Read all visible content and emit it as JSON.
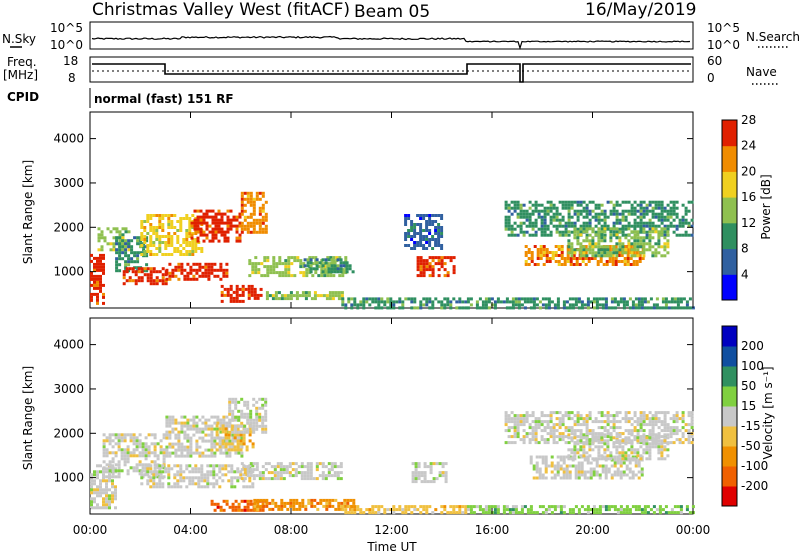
{
  "header": {
    "station": "Christmas Valley West (fitACF)",
    "beam": "Beam 05",
    "date": "16/May/2019"
  },
  "top_panels": {
    "nsky_label": "N.Sky",
    "nsky_tick_top": "10^5",
    "nsky_tick_bottom": "10^0",
    "nsearch_label": "N.Search",
    "nsearch_tick_top": "10^5",
    "nsearch_tick_bottom": "10^0",
    "freq_label": "Freq.",
    "freq_unit": "[MHz]",
    "freq_tick_top": "18",
    "freq_tick_bottom": "8",
    "nave_label": "Nave",
    "nave_tick_top": "60",
    "nave_tick_bottom": "0",
    "cpid_label": "CPID",
    "cpid_value": "normal (fast) 151 RF"
  },
  "chart_data": [
    {
      "type": "heatmap",
      "name": "power",
      "ylabel": "Slant Range [km]",
      "yticks": [
        "1000",
        "2000",
        "3000",
        "4000"
      ],
      "ylim": [
        180,
        4600
      ],
      "xlim": [
        0,
        24
      ],
      "colorbar_label": "Power [dB]",
      "colorbar_ticks": [
        "4",
        "8",
        "12",
        "16",
        "20",
        "24",
        "28"
      ],
      "colors": [
        "#0000ff",
        "#3060a0",
        "#2f8f60",
        "#8fc050",
        "#f0d020",
        "#f08c00",
        "#e02000"
      ],
      "regions": [
        {
          "t0": 0.0,
          "t1": 0.5,
          "r0": 300,
          "r1": 1400,
          "level": 6
        },
        {
          "t0": 0.3,
          "t1": 1.5,
          "r0": 1500,
          "r1": 2000,
          "level": 3
        },
        {
          "t0": 1.0,
          "t1": 2.2,
          "r0": 1000,
          "r1": 1800,
          "level": 2
        },
        {
          "t0": 1.3,
          "t1": 3.0,
          "r0": 700,
          "r1": 1100,
          "level": 6
        },
        {
          "t0": 2.0,
          "t1": 4.5,
          "r0": 1400,
          "r1": 2300,
          "level": 4
        },
        {
          "t0": 3.0,
          "t1": 5.5,
          "r0": 800,
          "r1": 1200,
          "level": 6
        },
        {
          "t0": 4.0,
          "t1": 6.0,
          "r0": 1700,
          "r1": 2400,
          "level": 6
        },
        {
          "t0": 5.2,
          "t1": 6.8,
          "r0": 350,
          "r1": 700,
          "level": 6
        },
        {
          "t0": 6.0,
          "t1": 7.0,
          "r0": 1900,
          "r1": 2800,
          "level": 5
        },
        {
          "t0": 6.3,
          "t1": 10.2,
          "r0": 900,
          "r1": 1350,
          "level": 3
        },
        {
          "t0": 7.0,
          "t1": 10.0,
          "r0": 380,
          "r1": 560,
          "level": 3
        },
        {
          "t0": 8.5,
          "t1": 10.5,
          "r0": 1000,
          "r1": 1300,
          "level": 2
        },
        {
          "t0": 10.0,
          "t1": 15.0,
          "r0": 200,
          "r1": 420,
          "level": 2
        },
        {
          "t0": 12.5,
          "t1": 14.0,
          "r0": 1550,
          "r1": 2300,
          "level": 1
        },
        {
          "t0": 13.0,
          "t1": 14.5,
          "r0": 900,
          "r1": 1350,
          "level": 6
        },
        {
          "t0": 15.0,
          "t1": 24.0,
          "r0": 200,
          "r1": 420,
          "level": 2
        },
        {
          "t0": 16.5,
          "t1": 24.0,
          "r0": 1800,
          "r1": 2600,
          "level": 2
        },
        {
          "t0": 17.3,
          "t1": 22.0,
          "r0": 1150,
          "r1": 1600,
          "level": 5
        },
        {
          "t0": 19.0,
          "t1": 23.0,
          "r0": 1350,
          "r1": 2000,
          "level": 3
        }
      ]
    },
    {
      "type": "heatmap",
      "name": "velocity",
      "ylabel": "Slant Range [km]",
      "yticks": [
        "1000",
        "2000",
        "3000",
        "4000"
      ],
      "ylim": [
        180,
        4600
      ],
      "xlim": [
        0,
        24
      ],
      "xlabel": "Time UT",
      "xticks": [
        "00:00",
        "04:00",
        "08:00",
        "12:00",
        "16:00",
        "20:00",
        "00:00"
      ],
      "colorbar_label": "Velocity [m s⁻¹]",
      "colorbar_ticks": [
        "-200",
        "-100",
        "-50",
        "-15",
        "15",
        "50",
        "100",
        "200"
      ],
      "colors": [
        "#e00000",
        "#f06000",
        "#f09000",
        "#f0c040",
        "#c8c8c8",
        "#80d040",
        "#309060",
        "#104fa0",
        "#0000c0"
      ],
      "regions": [
        {
          "t0": 0.0,
          "t1": 1.0,
          "r0": 300,
          "r1": 1300,
          "level": 4
        },
        {
          "t0": 0.5,
          "t1": 3.0,
          "r0": 1000,
          "r1": 2000,
          "level": 4
        },
        {
          "t0": 2.0,
          "t1": 6.5,
          "r0": 800,
          "r1": 1300,
          "level": 4
        },
        {
          "t0": 3.0,
          "t1": 6.0,
          "r0": 1500,
          "r1": 2400,
          "level": 4
        },
        {
          "t0": 5.0,
          "t1": 6.5,
          "r0": 1600,
          "r1": 2200,
          "level": 3
        },
        {
          "t0": 5.5,
          "t1": 7.0,
          "r0": 2000,
          "r1": 2800,
          "level": 4
        },
        {
          "t0": 6.0,
          "t1": 10.0,
          "r0": 950,
          "r1": 1350,
          "level": 4
        },
        {
          "t0": 4.8,
          "t1": 7.0,
          "r0": 280,
          "r1": 500,
          "level": 1
        },
        {
          "t0": 6.5,
          "t1": 10.5,
          "r0": 280,
          "r1": 520,
          "level": 2
        },
        {
          "t0": 10.0,
          "t1": 15.0,
          "r0": 200,
          "r1": 380,
          "level": 3
        },
        {
          "t0": 12.8,
          "t1": 14.2,
          "r0": 900,
          "r1": 1350,
          "level": 4
        },
        {
          "t0": 15.0,
          "t1": 24.0,
          "r0": 200,
          "r1": 380,
          "level": 5
        },
        {
          "t0": 16.5,
          "t1": 24.0,
          "r0": 1800,
          "r1": 2500,
          "level": 4
        },
        {
          "t0": 17.5,
          "t1": 22.0,
          "r0": 1000,
          "r1": 1500,
          "level": 4
        },
        {
          "t0": 19.0,
          "t1": 23.0,
          "r0": 1400,
          "r1": 2000,
          "level": 4
        }
      ]
    }
  ]
}
